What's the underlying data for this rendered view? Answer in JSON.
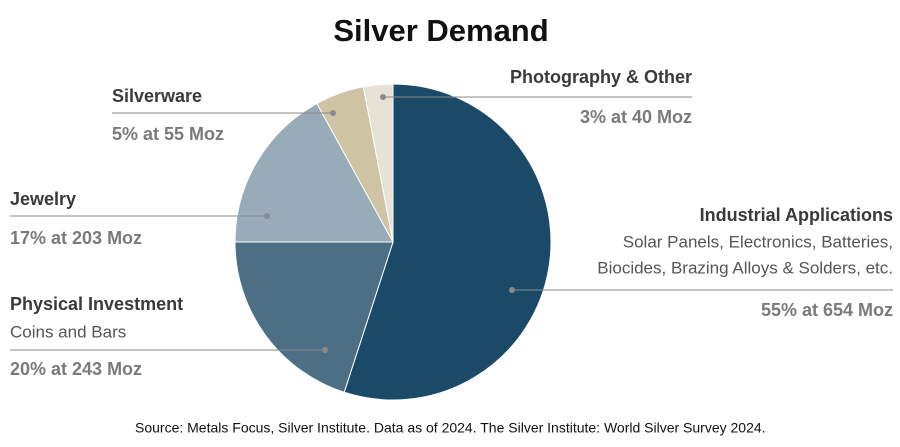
{
  "chart_data": {
    "type": "pie",
    "title": "Silver Demand",
    "categories": [
      "Industrial Applications",
      "Physical Investment",
      "Jewelry",
      "Silverware",
      "Photography & Other"
    ],
    "values": [
      55,
      20,
      17,
      5,
      3
    ],
    "value_labels": [
      "55% at 654 Moz",
      "20% at 243 Moz",
      "17% at 203 Moz",
      "5% at 55 Moz",
      "3% at 40 Moz"
    ],
    "descriptions": [
      [
        "Solar Panels, Electronics, Batteries,",
        "Biocides, Brazing Alloys & Solders, etc."
      ],
      [
        "Coins and Bars"
      ],
      null,
      null,
      null
    ],
    "colors": [
      "#1b4a69",
      "#4c6f86",
      "#98abb8",
      "#cec4a4",
      "#e7e2d6"
    ],
    "source": "Source: Metals Focus, Silver Institute. Data as of 2024. The Silver Institute: World Silver Survey 2024."
  }
}
